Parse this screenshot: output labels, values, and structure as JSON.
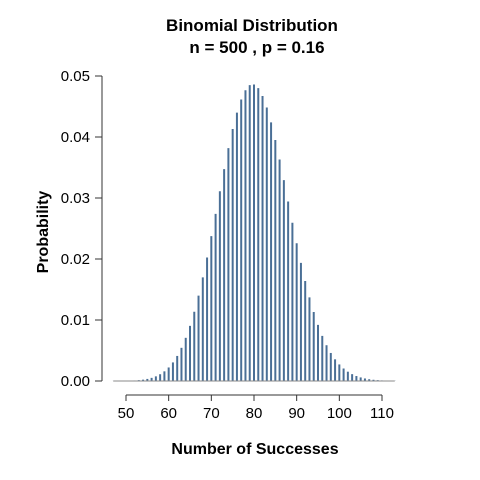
{
  "chart_data": {
    "type": "bar",
    "title": "Binomial Distribution",
    "subtitle": "n = 500 , p = 0.16",
    "xlabel": "Number of Successes",
    "ylabel": "Probability",
    "n": 500,
    "p": 0.16,
    "x_range": [
      47,
      113
    ],
    "xlim": [
      45,
      115
    ],
    "ylim": [
      0,
      0.05
    ],
    "x_ticks": [
      50,
      60,
      70,
      80,
      90,
      100,
      110
    ],
    "y_ticks": [
      0.0,
      0.01,
      0.02,
      0.03,
      0.04,
      0.05
    ],
    "y_tick_labels": [
      "0.00",
      "0.01",
      "0.02",
      "0.03",
      "0.04",
      "0.05"
    ],
    "bar_color": "#4a6f96",
    "grid": false
  }
}
